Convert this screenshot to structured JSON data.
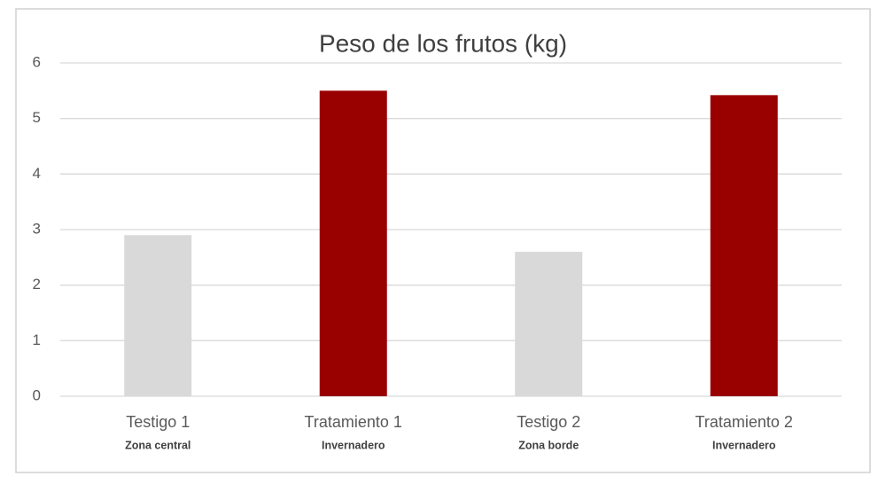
{
  "chart_data": {
    "type": "bar",
    "title": "Peso de los frutos (kg)",
    "categories": [
      "Testigo 1",
      "Tratamiento 1",
      "Testigo 2",
      "Tratamiento 2"
    ],
    "subcategories": [
      "Zona central",
      "Invernadero",
      "Zona borde",
      "Invernadero"
    ],
    "values": [
      2.9,
      5.5,
      2.6,
      5.42
    ],
    "colors": [
      "#d9d9d9",
      "#990000",
      "#d9d9d9",
      "#990000"
    ],
    "ylim": [
      0,
      6
    ],
    "yticks": [
      0,
      1,
      2,
      3,
      4,
      5,
      6
    ],
    "grid": true
  }
}
